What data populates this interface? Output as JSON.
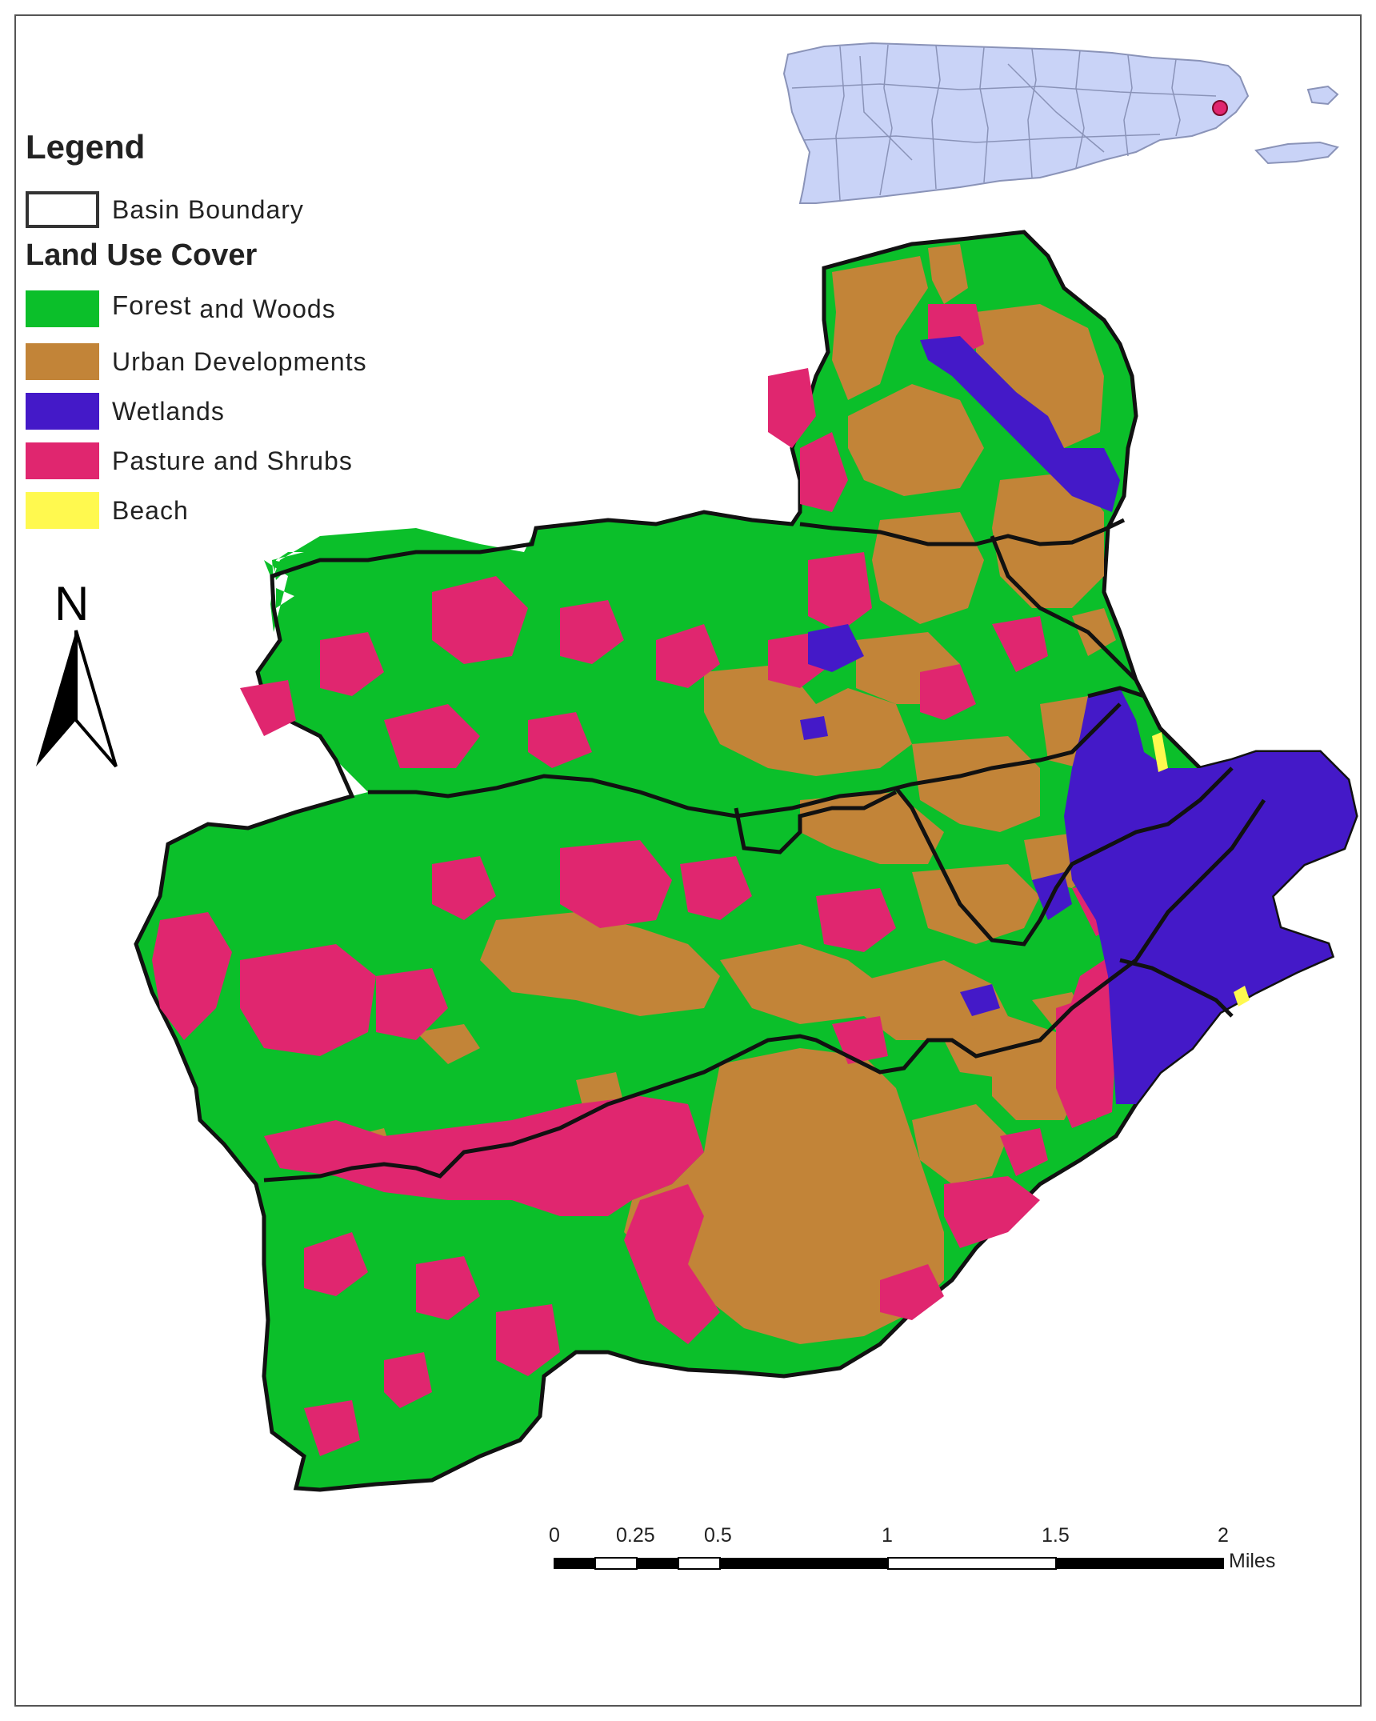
{
  "legend": {
    "title": "Legend",
    "boundary_label": "Basin Boundary",
    "section_title": "Land Use Cover",
    "classes": [
      {
        "label_a": "Forest",
        "label_b": " and Woods",
        "color": "#0bbf2a"
      },
      {
        "label": "Urban Developments",
        "color": "#c28438"
      },
      {
        "label": "Wetlands",
        "color": "#4419c8"
      },
      {
        "label": "Pasture and Shrubs",
        "color": "#e0266f"
      },
      {
        "label": "Beach",
        "color": "#fff94f"
      }
    ]
  },
  "north_arrow": {
    "letter": "N",
    "icon": "north-arrow-icon"
  },
  "scale_bar": {
    "ticks": [
      "0",
      "0.25",
      "0.5",
      "1",
      "1.5",
      "2"
    ],
    "unit": "Miles"
  },
  "inset": {
    "land_color": "#c9d3f7",
    "highlight_color": "#e0266f"
  }
}
